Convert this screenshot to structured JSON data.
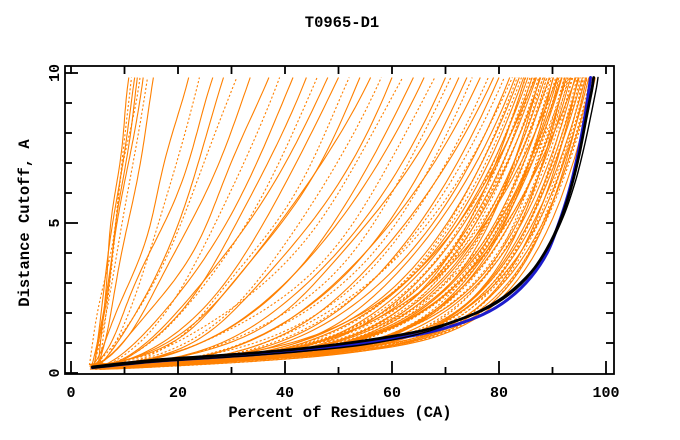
{
  "window": {
    "background": "#ffffff"
  },
  "chart_data": {
    "type": "line",
    "title": "T0965-D1",
    "xlabel": "Percent of Residues (CA)",
    "ylabel": "Distance Cutoff, A",
    "xlim": [
      0,
      100
    ],
    "ylim": [
      0,
      10
    ],
    "grid": "off",
    "legend": "none",
    "x_major_ticks": [
      0,
      20,
      40,
      60,
      80,
      100
    ],
    "x_tick_labels": [
      "0",
      "20",
      "40",
      "60",
      "80",
      "100"
    ],
    "x_minor_ticks": [
      10,
      30,
      50,
      70,
      90
    ],
    "x_top_ticks": [
      0,
      10,
      20,
      30,
      40,
      50,
      60,
      70,
      80,
      90,
      100
    ],
    "y_major_ticks": [
      0,
      5,
      10
    ],
    "y_tick_labels": [
      "0",
      "5",
      "10"
    ],
    "y_minor_ticks": [
      1,
      2,
      3,
      4,
      6,
      7,
      8,
      9
    ],
    "y_right_ticks": [
      1,
      2,
      3,
      4,
      5,
      6,
      7,
      8,
      9
    ],
    "colors": {
      "ensemble": "#ff8000",
      "best_blue": "#1c1ccd",
      "best_black": "#000000",
      "axis": "#000000"
    },
    "highlighted_series": [
      {
        "name": "highlighted-model-blue",
        "color": "#1c1ccd",
        "width": 3,
        "points": [
          [
            4,
            0.18
          ],
          [
            15,
            0.38
          ],
          [
            25,
            0.5
          ],
          [
            35,
            0.62
          ],
          [
            45,
            0.78
          ],
          [
            55,
            1.0
          ],
          [
            64,
            1.25
          ],
          [
            70,
            1.5
          ],
          [
            77,
            1.95
          ],
          [
            82,
            2.5
          ],
          [
            86,
            3.2
          ],
          [
            89,
            4.0
          ],
          [
            91,
            4.9
          ],
          [
            93,
            6.0
          ],
          [
            94.5,
            7.1
          ],
          [
            95.8,
            8.3
          ],
          [
            96.7,
            9.3
          ],
          [
            97.1,
            9.85
          ]
        ]
      },
      {
        "name": "highlighted-model-black-thick",
        "color": "#000000",
        "width": 2.8,
        "points": [
          [
            4,
            0.2
          ],
          [
            15,
            0.42
          ],
          [
            25,
            0.55
          ],
          [
            35,
            0.68
          ],
          [
            45,
            0.85
          ],
          [
            55,
            1.08
          ],
          [
            64,
            1.35
          ],
          [
            70,
            1.62
          ],
          [
            77,
            2.1
          ],
          [
            82,
            2.65
          ],
          [
            86,
            3.35
          ],
          [
            89,
            4.15
          ],
          [
            91.5,
            5.1
          ],
          [
            93.5,
            6.2
          ],
          [
            95,
            7.3
          ],
          [
            96.3,
            8.5
          ],
          [
            97.3,
            9.4
          ],
          [
            97.7,
            9.85
          ]
        ]
      },
      {
        "name": "highlighted-model-black-thin",
        "color": "#000000",
        "width": 1.4,
        "points": [
          [
            4,
            0.16
          ],
          [
            15,
            0.36
          ],
          [
            25,
            0.48
          ],
          [
            35,
            0.6
          ],
          [
            45,
            0.75
          ],
          [
            55,
            0.95
          ],
          [
            65,
            1.3
          ],
          [
            73,
            1.8
          ],
          [
            80,
            2.45
          ],
          [
            85,
            3.2
          ],
          [
            89,
            4.1
          ],
          [
            92,
            5.2
          ],
          [
            94.3,
            6.4
          ],
          [
            96,
            7.6
          ],
          [
            97.3,
            8.7
          ],
          [
            98.2,
            9.5
          ],
          [
            98.5,
            9.85
          ]
        ]
      }
    ],
    "ensemble": {
      "name": "server-model-curves",
      "color": "#ff8000",
      "width": 1.1,
      "start_percent_range": [
        3.4,
        5.6
      ],
      "start_distance": 0.2,
      "top_distance": 9.85,
      "curve_params_format": [
        "percent_reached_at_top",
        "shape_exponent",
        "dotted_flag"
      ],
      "curves": [
        [
          10.8,
          0.85,
          0
        ],
        [
          11.3,
          1.0,
          1
        ],
        [
          11.9,
          0.9,
          0
        ],
        [
          12.4,
          1.1,
          0
        ],
        [
          12.9,
          0.95,
          1
        ],
        [
          13.5,
          1.05,
          0
        ],
        [
          14.3,
          1.15,
          1
        ],
        [
          15.4,
          1.2,
          0
        ],
        [
          22,
          1.3,
          0
        ],
        [
          24,
          1.45,
          1
        ],
        [
          26.5,
          1.35,
          0
        ],
        [
          28.5,
          1.5,
          0
        ],
        [
          31,
          1.4,
          1
        ],
        [
          33.5,
          1.55,
          0
        ],
        [
          37,
          1.6,
          0
        ],
        [
          39,
          1.75,
          1
        ],
        [
          41.5,
          1.65,
          0
        ],
        [
          44,
          1.8,
          0
        ],
        [
          46,
          1.9,
          1
        ],
        [
          48,
          1.7,
          0
        ],
        [
          50,
          2.0,
          0
        ],
        [
          52,
          2.1,
          1
        ],
        [
          54,
          2.2,
          0
        ],
        [
          56,
          2.0,
          0
        ],
        [
          58,
          2.3,
          1
        ],
        [
          60,
          2.4,
          0
        ],
        [
          62,
          2.2,
          1
        ],
        [
          64,
          2.6,
          0
        ],
        [
          66,
          2.5,
          0
        ],
        [
          68,
          2.7,
          1
        ],
        [
          70,
          2.8,
          0
        ],
        [
          71,
          3.0,
          1
        ],
        [
          72.5,
          2.7,
          0
        ],
        [
          74,
          3.1,
          0
        ],
        [
          75,
          3.3,
          1
        ],
        [
          76.5,
          3.0,
          0
        ],
        [
          78,
          3.4,
          1
        ],
        [
          79,
          3.2,
          0
        ],
        [
          80,
          3.6,
          0
        ],
        [
          81,
          3.5,
          1
        ],
        [
          82,
          3.8,
          0
        ],
        [
          82.5,
          3.3,
          1
        ],
        [
          83,
          4.0,
          0
        ],
        [
          83.4,
          4.4,
          1
        ],
        [
          83.8,
          4.1,
          0
        ],
        [
          84.2,
          4.6,
          1
        ],
        [
          84.6,
          4.3,
          0
        ],
        [
          85,
          4.8,
          1
        ],
        [
          85.4,
          4.5,
          0
        ],
        [
          85.8,
          5.0,
          1
        ],
        [
          86.2,
          4.7,
          0
        ],
        [
          86.6,
          5.2,
          1
        ],
        [
          87,
          4.9,
          0
        ],
        [
          87.4,
          5.4,
          1
        ],
        [
          87.8,
          5.1,
          0
        ],
        [
          88.2,
          5.6,
          1
        ],
        [
          88.6,
          5.3,
          0
        ],
        [
          89,
          5.8,
          1
        ],
        [
          89.4,
          5.5,
          0
        ],
        [
          89.8,
          6.0,
          1
        ],
        [
          90.2,
          5.7,
          0
        ],
        [
          90.6,
          6.2,
          1
        ],
        [
          91,
          5.9,
          0
        ],
        [
          91.4,
          6.4,
          1
        ],
        [
          91.8,
          6.1,
          0
        ],
        [
          92.2,
          6.6,
          1
        ],
        [
          92.6,
          6.3,
          0
        ],
        [
          93,
          6.8,
          1
        ],
        [
          93.4,
          6.5,
          0
        ],
        [
          93.8,
          7.0,
          1
        ],
        [
          94.2,
          6.7,
          0
        ],
        [
          94.6,
          7.2,
          1
        ],
        [
          95,
          6.9,
          0
        ],
        [
          95.3,
          7.4,
          1
        ],
        [
          95.6,
          7.1,
          0
        ],
        [
          95.9,
          7.6,
          1
        ],
        [
          96.2,
          7.3,
          0
        ],
        [
          96.5,
          7.8,
          1
        ],
        [
          96.8,
          7.5,
          0
        ],
        [
          97.1,
          8.0,
          1
        ],
        [
          97.4,
          7.7,
          0
        ],
        [
          97.7,
          8.2,
          1
        ],
        [
          98,
          8.5,
          0
        ],
        [
          84.9,
          5.6,
          0
        ],
        [
          86.1,
          6.0,
          1
        ],
        [
          87.6,
          6.4,
          0
        ],
        [
          88.9,
          6.8,
          1
        ],
        [
          90.1,
          7.2,
          0
        ],
        [
          91.2,
          7.6,
          1
        ],
        [
          92.3,
          8.0,
          0
        ],
        [
          93.6,
          8.4,
          1
        ],
        [
          94.8,
          8.8,
          0
        ],
        [
          95.7,
          9.2,
          1
        ],
        [
          96.4,
          8.6,
          0
        ],
        [
          89.6,
          4.9,
          1
        ],
        [
          91.7,
          5.2,
          0
        ],
        [
          93.2,
          5.5,
          1
        ],
        [
          86.8,
          4.2,
          0
        ],
        [
          88.3,
          4.4,
          1
        ],
        [
          90.9,
          4.6,
          0
        ],
        [
          92.9,
          4.8,
          1
        ],
        [
          94.4,
          5.0,
          0
        ]
      ]
    }
  }
}
